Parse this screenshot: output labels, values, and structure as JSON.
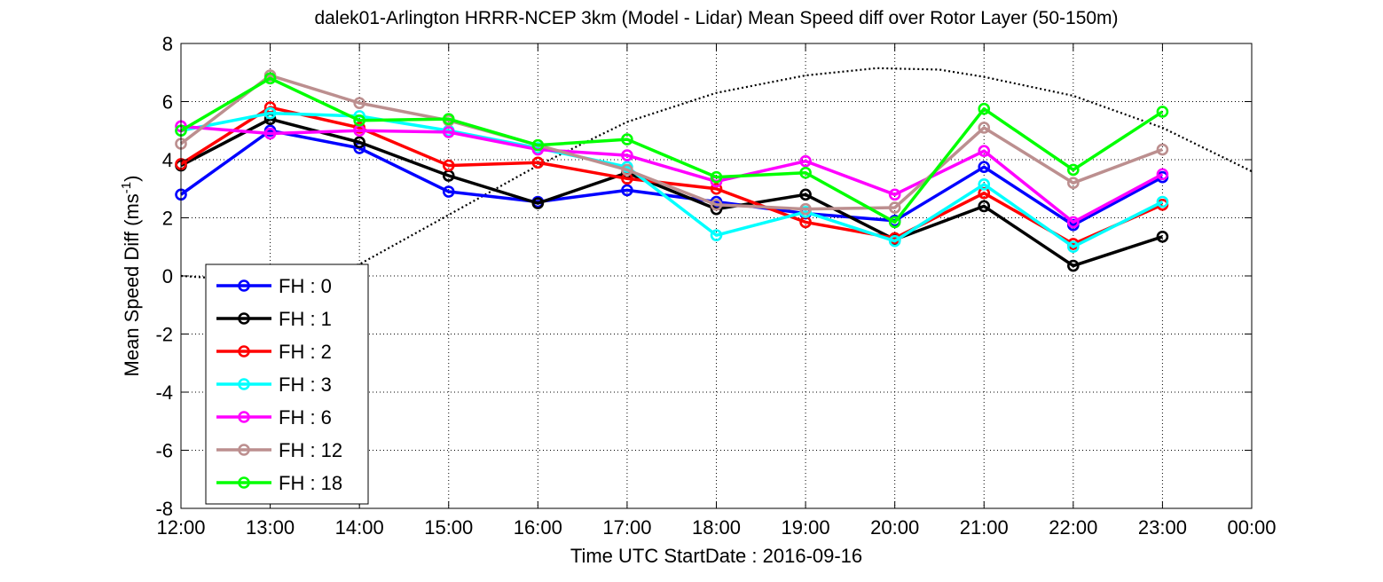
{
  "chart_data": {
    "type": "line",
    "title": "dalek01-Arlington HRRR-NCEP 3km (Model - Lidar) Mean Speed diff over Rotor Layer (50-150m)",
    "xlabel": "Time UTC    StartDate : 2016-09-16",
    "ylabel_prefix": "Mean Speed Diff (ms",
    "ylabel_exp": "-1",
    "ylabel_suffix": ")",
    "x_ticks": [
      "12:00",
      "13:00",
      "14:00",
      "15:00",
      "16:00",
      "17:00",
      "18:00",
      "19:00",
      "20:00",
      "21:00",
      "22:00",
      "23:00",
      "00:00"
    ],
    "y_ticks": [
      8,
      6,
      4,
      2,
      0,
      -2,
      -4,
      -6,
      -8
    ],
    "ylim": [
      -8,
      8
    ],
    "xlim": [
      12,
      24
    ],
    "grid": true,
    "legend_position": "lower-left",
    "series": [
      {
        "name": "FH : 0",
        "color": "#0000ff",
        "x": [
          12,
          13,
          14,
          15,
          16,
          17,
          18,
          19,
          20,
          21,
          22,
          23
        ],
        "values": [
          2.8,
          5.0,
          4.4,
          2.9,
          2.55,
          2.95,
          2.55,
          2.15,
          1.9,
          3.75,
          1.75,
          3.4
        ]
      },
      {
        "name": "FH : 1",
        "color": "#000000",
        "x": [
          12,
          13,
          14,
          15,
          16,
          17,
          18,
          19,
          20,
          21,
          22,
          23
        ],
        "values": [
          3.8,
          5.4,
          4.6,
          3.45,
          2.5,
          3.55,
          2.3,
          2.8,
          1.25,
          2.4,
          0.35,
          1.35
        ]
      },
      {
        "name": "FH : 2",
        "color": "#ff0000",
        "x": [
          12,
          13,
          14,
          15,
          16,
          17,
          18,
          19,
          20,
          21,
          22,
          23
        ],
        "values": [
          3.85,
          5.8,
          5.1,
          3.8,
          3.9,
          3.35,
          3.0,
          1.85,
          1.3,
          2.85,
          1.1,
          2.45
        ]
      },
      {
        "name": "FH : 3",
        "color": "#00ffff",
        "x": [
          12,
          13,
          14,
          15,
          16,
          17,
          18,
          19,
          20,
          21,
          22,
          23
        ],
        "values": [
          5.0,
          5.6,
          5.5,
          5.0,
          4.4,
          3.75,
          1.4,
          2.2,
          1.2,
          3.15,
          1.0,
          2.55
        ]
      },
      {
        "name": "FH : 6",
        "color": "#ff00ff",
        "x": [
          12,
          13,
          14,
          15,
          16,
          17,
          18,
          19,
          20,
          21,
          22,
          23
        ],
        "values": [
          5.15,
          4.9,
          5.0,
          4.95,
          4.35,
          4.15,
          3.25,
          3.95,
          2.8,
          4.3,
          1.85,
          3.5
        ]
      },
      {
        "name": "FH : 12",
        "color": "#bc8f8f",
        "x": [
          12,
          13,
          14,
          15,
          16,
          17,
          18,
          19,
          20,
          21,
          22,
          23
        ],
        "values": [
          4.55,
          6.9,
          5.95,
          5.35,
          4.5,
          3.65,
          2.45,
          2.3,
          2.35,
          5.1,
          3.2,
          4.35
        ]
      },
      {
        "name": "FH : 18",
        "color": "#00ff00",
        "x": [
          12,
          13,
          14,
          15,
          16,
          17,
          18,
          19,
          20,
          21,
          22,
          23
        ],
        "values": [
          5.0,
          6.8,
          5.35,
          5.4,
          4.5,
          4.7,
          3.4,
          3.55,
          1.85,
          5.75,
          3.65,
          5.65
        ]
      }
    ],
    "reference_curve": {
      "style": "dotted",
      "color": "#000000",
      "x": [
        12,
        13,
        14,
        15,
        16,
        17,
        18,
        19,
        19.8,
        20.5,
        21,
        22,
        23,
        24
      ],
      "values": [
        0,
        -0.2,
        0.4,
        2.1,
        3.8,
        5.3,
        6.3,
        6.9,
        7.15,
        7.1,
        6.85,
        6.2,
        5.1,
        3.6
      ]
    }
  }
}
